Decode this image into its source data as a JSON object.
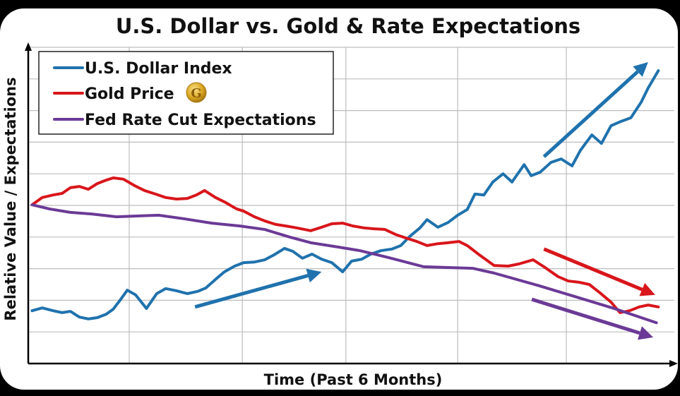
{
  "chart_data": {
    "type": "line",
    "title": "U.S. Dollar vs. Gold & Rate Expectations",
    "xlabel": "Time (Past 6 Months)",
    "ylabel": "Relative Value / Expectations",
    "xlim": [
      0,
      100
    ],
    "ylim": [
      0,
      100
    ],
    "grid": true,
    "x_grid": [
      15.8,
      33.5,
      49.7,
      67.2,
      84.2
    ],
    "y_grid": [
      10,
      20,
      30,
      40,
      50,
      60,
      70,
      80,
      90
    ],
    "legend_position": "top-left",
    "series": [
      {
        "name": "U.S. Dollar Index",
        "color": "#1f72ad",
        "icon": null,
        "points": [
          [
            0.6,
            16.7
          ],
          [
            2.2,
            17.6
          ],
          [
            3.9,
            16.7
          ],
          [
            5.3,
            16.1
          ],
          [
            6.6,
            16.5
          ],
          [
            8.0,
            14.7
          ],
          [
            9.4,
            14.1
          ],
          [
            10.8,
            14.5
          ],
          [
            12.2,
            15.6
          ],
          [
            13.3,
            17.2
          ],
          [
            14.4,
            20.1
          ],
          [
            15.5,
            23.2
          ],
          [
            16.8,
            21.7
          ],
          [
            18.5,
            17.4
          ],
          [
            20.1,
            22.1
          ],
          [
            21.5,
            23.7
          ],
          [
            23.2,
            23.0
          ],
          [
            24.9,
            22.1
          ],
          [
            26.5,
            22.8
          ],
          [
            27.8,
            23.9
          ],
          [
            29.3,
            26.6
          ],
          [
            30.7,
            29.0
          ],
          [
            32.3,
            30.8
          ],
          [
            33.7,
            31.9
          ],
          [
            35.4,
            32.1
          ],
          [
            37.0,
            32.8
          ],
          [
            38.5,
            34.4
          ],
          [
            40.1,
            36.4
          ],
          [
            41.4,
            35.5
          ],
          [
            42.9,
            33.3
          ],
          [
            44.4,
            34.6
          ],
          [
            45.9,
            33.0
          ],
          [
            47.5,
            31.9
          ],
          [
            49.2,
            29.0
          ],
          [
            50.6,
            32.4
          ],
          [
            52.2,
            33.0
          ],
          [
            53.6,
            34.6
          ],
          [
            55.2,
            35.7
          ],
          [
            56.9,
            36.2
          ],
          [
            58.3,
            37.3
          ],
          [
            59.7,
            40.2
          ],
          [
            61.3,
            42.9
          ],
          [
            62.4,
            45.5
          ],
          [
            64.1,
            43.1
          ],
          [
            65.7,
            44.6
          ],
          [
            67.2,
            46.9
          ],
          [
            68.7,
            48.7
          ],
          [
            69.9,
            53.6
          ],
          [
            71.3,
            53.3
          ],
          [
            72.7,
            57.4
          ],
          [
            74.3,
            60.0
          ],
          [
            75.7,
            57.4
          ],
          [
            77.6,
            62.9
          ],
          [
            78.7,
            59.4
          ],
          [
            80.1,
            60.5
          ],
          [
            81.8,
            63.6
          ],
          [
            83.4,
            64.7
          ],
          [
            85.1,
            62.5
          ],
          [
            86.4,
            67.4
          ],
          [
            88.2,
            72.3
          ],
          [
            89.7,
            69.6
          ],
          [
            91.2,
            75.2
          ],
          [
            92.8,
            76.6
          ],
          [
            94.3,
            77.7
          ],
          [
            95.9,
            82.6
          ],
          [
            97.0,
            87.1
          ],
          [
            98.6,
            92.6
          ]
        ]
      },
      {
        "name": "Gold Price",
        "color": "#d8161b",
        "icon": "gold-coin-icon",
        "points": [
          [
            0.6,
            50.2
          ],
          [
            2.2,
            52.5
          ],
          [
            3.9,
            53.3
          ],
          [
            5.3,
            53.8
          ],
          [
            6.6,
            55.6
          ],
          [
            8.0,
            56.0
          ],
          [
            9.4,
            55.1
          ],
          [
            10.8,
            56.9
          ],
          [
            12.2,
            58.0
          ],
          [
            13.3,
            58.7
          ],
          [
            14.9,
            58.3
          ],
          [
            16.6,
            56.3
          ],
          [
            18.2,
            54.7
          ],
          [
            19.9,
            53.6
          ],
          [
            21.5,
            52.5
          ],
          [
            23.2,
            52.0
          ],
          [
            24.9,
            52.2
          ],
          [
            26.3,
            53.3
          ],
          [
            27.6,
            54.7
          ],
          [
            29.3,
            52.5
          ],
          [
            30.9,
            50.9
          ],
          [
            32.6,
            48.9
          ],
          [
            33.7,
            48.2
          ],
          [
            35.4,
            46.4
          ],
          [
            37.0,
            45.1
          ],
          [
            38.7,
            44.0
          ],
          [
            40.3,
            43.5
          ],
          [
            42.0,
            42.9
          ],
          [
            44.2,
            42.0
          ],
          [
            45.9,
            43.1
          ],
          [
            47.5,
            44.2
          ],
          [
            49.2,
            44.4
          ],
          [
            50.8,
            43.5
          ],
          [
            52.5,
            42.9
          ],
          [
            54.1,
            42.6
          ],
          [
            55.8,
            42.4
          ],
          [
            57.5,
            40.8
          ],
          [
            59.1,
            39.7
          ],
          [
            60.8,
            38.6
          ],
          [
            62.4,
            37.3
          ],
          [
            64.1,
            37.9
          ],
          [
            65.7,
            38.2
          ],
          [
            67.4,
            38.6
          ],
          [
            68.7,
            37.3
          ],
          [
            70.7,
            34.2
          ],
          [
            72.9,
            31.0
          ],
          [
            75.1,
            30.8
          ],
          [
            76.8,
            31.5
          ],
          [
            79.0,
            32.8
          ],
          [
            80.7,
            30.6
          ],
          [
            82.9,
            27.5
          ],
          [
            84.5,
            26.1
          ],
          [
            86.2,
            25.7
          ],
          [
            87.8,
            25.0
          ],
          [
            89.5,
            22.3
          ],
          [
            91.2,
            19.4
          ],
          [
            92.6,
            16.1
          ],
          [
            94.1,
            16.7
          ],
          [
            95.6,
            17.9
          ],
          [
            97.0,
            18.5
          ],
          [
            98.6,
            17.9
          ]
        ]
      },
      {
        "name": "Fed Rate Cut Expectations",
        "color": "#6b3a96",
        "icon": null,
        "points": [
          [
            0.6,
            50.2
          ],
          [
            3.3,
            48.9
          ],
          [
            6.6,
            47.8
          ],
          [
            9.9,
            47.3
          ],
          [
            13.8,
            46.4
          ],
          [
            17.7,
            46.7
          ],
          [
            20.4,
            46.9
          ],
          [
            24.3,
            45.8
          ],
          [
            28.7,
            44.4
          ],
          [
            33.1,
            43.5
          ],
          [
            37.0,
            42.4
          ],
          [
            40.9,
            40.0
          ],
          [
            44.2,
            38.2
          ],
          [
            48.6,
            36.8
          ],
          [
            51.9,
            35.7
          ],
          [
            56.4,
            33.5
          ],
          [
            61.9,
            30.6
          ],
          [
            69.6,
            30.1
          ],
          [
            72.9,
            28.6
          ],
          [
            79.6,
            24.8
          ],
          [
            87.3,
            20.1
          ],
          [
            91.7,
            17.4
          ],
          [
            98.3,
            12.9
          ]
        ]
      }
    ],
    "annotations": [
      {
        "type": "arrow",
        "series": "U.S. Dollar Index",
        "from": [
          26.1,
          17.9
        ],
        "to": [
          45.9,
          29.0
        ]
      },
      {
        "type": "arrow",
        "series": "U.S. Dollar Index",
        "from": [
          80.7,
          65.4
        ],
        "to": [
          97.0,
          95.3
        ]
      },
      {
        "type": "arrow",
        "series": "Gold Price",
        "from": [
          80.7,
          36.2
        ],
        "to": [
          98.1,
          21.7
        ]
      },
      {
        "type": "arrow",
        "series": "Fed Rate Cut Expectations",
        "from": [
          78.8,
          20.3
        ],
        "to": [
          97.8,
          8.3
        ]
      }
    ]
  }
}
